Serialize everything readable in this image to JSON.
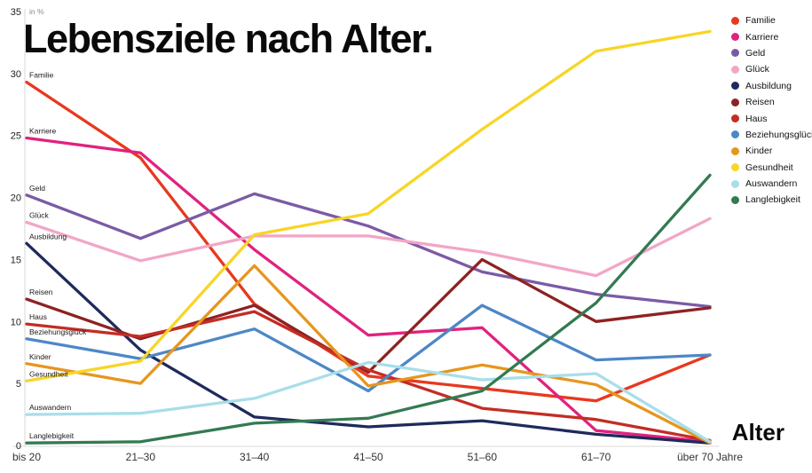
{
  "chart_data": {
    "type": "line",
    "title": "Lebensziele nach Alter.",
    "unit_label": "in %",
    "xlabel": "Alter",
    "ylim": [
      0,
      35
    ],
    "yticks": [
      0,
      5,
      10,
      15,
      20,
      25,
      30,
      35
    ],
    "grid": false,
    "legend_position": "top-right",
    "categories": [
      "bis 20",
      "21–30",
      "31–40",
      "41–50",
      "51–60",
      "61–70",
      "über 70 Jahre"
    ],
    "series": [
      {
        "name": "Familie",
        "color": "#e8381f",
        "values": [
          29.3,
          23.2,
          11.4,
          5.6,
          4.6,
          3.6,
          7.3
        ]
      },
      {
        "name": "Karriere",
        "color": "#e0227f",
        "values": [
          24.8,
          23.6,
          15.8,
          8.9,
          9.5,
          1.2,
          0.3
        ]
      },
      {
        "name": "Geld",
        "color": "#7a5ba6",
        "values": [
          20.2,
          16.7,
          20.3,
          17.7,
          14.0,
          12.2,
          11.2
        ]
      },
      {
        "name": "Glück",
        "color": "#f2a6c6",
        "values": [
          18.0,
          14.9,
          16.9,
          16.9,
          15.6,
          13.7,
          18.3
        ]
      },
      {
        "name": "Ausbildung",
        "color": "#1f2a5c",
        "values": [
          16.3,
          7.7,
          2.3,
          1.5,
          2.0,
          0.9,
          0.2
        ]
      },
      {
        "name": "Reisen",
        "color": "#8e2222",
        "values": [
          11.8,
          8.6,
          11.3,
          5.9,
          15.0,
          10.0,
          11.1
        ]
      },
      {
        "name": "Haus",
        "color": "#c32d24",
        "values": [
          9.8,
          8.8,
          10.8,
          6.1,
          3.0,
          2.1,
          0.4
        ]
      },
      {
        "name": "Beziehungsglück",
        "color": "#4d87c7",
        "values": [
          8.6,
          7.0,
          9.4,
          4.4,
          11.3,
          6.9,
          7.3
        ]
      },
      {
        "name": "Kinder",
        "color": "#e6961e",
        "values": [
          6.6,
          5.0,
          14.5,
          4.8,
          6.5,
          4.9,
          0.2
        ]
      },
      {
        "name": "Gesundheit",
        "color": "#f8d526",
        "values": [
          5.2,
          6.8,
          17.0,
          18.7,
          25.5,
          31.8,
          33.4
        ]
      },
      {
        "name": "Auswandern",
        "color": "#a8dee9",
        "values": [
          2.5,
          2.6,
          3.8,
          6.7,
          5.3,
          5.8,
          0.3
        ]
      },
      {
        "name": "Langlebigkeit",
        "color": "#337a52",
        "values": [
          0.2,
          0.3,
          1.8,
          2.2,
          4.4,
          11.5,
          21.8
        ]
      }
    ]
  }
}
